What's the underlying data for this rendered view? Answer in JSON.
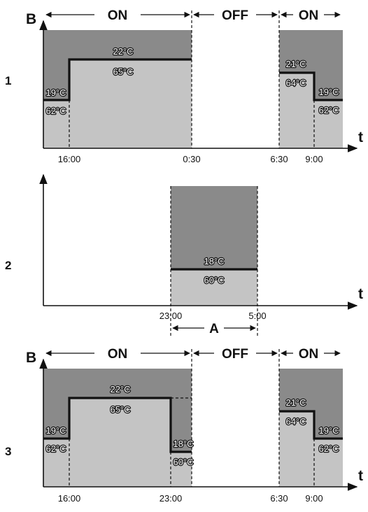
{
  "axis_labels": {
    "b": "B",
    "t": "t"
  },
  "panels": [
    {
      "number": "1",
      "states": {
        "on_1": "ON",
        "off": "OFF",
        "on_2": "ON"
      },
      "ticks": [
        "16:00",
        "0:30",
        "6:30",
        "9:00"
      ],
      "temps": [
        {
          "top": "19°C",
          "bottom": "62°C"
        },
        {
          "top": "22°C",
          "bottom": "65°C"
        },
        {
          "top": "21°C",
          "bottom": "64°C"
        },
        {
          "top": "19°C",
          "bottom": "62°C"
        }
      ]
    },
    {
      "number": "2",
      "ticks": [
        "23:00",
        "5:00"
      ],
      "temps": [
        {
          "top": "18°C",
          "bottom": "60°C"
        }
      ],
      "interval_label": "A"
    },
    {
      "number": "3",
      "states": {
        "on_1": "ON",
        "off": "OFF",
        "on_2": "ON"
      },
      "ticks": [
        "16:00",
        "23:00",
        "6:30",
        "9:00"
      ],
      "temps": [
        {
          "top": "19°C",
          "bottom": "62°C"
        },
        {
          "top": "22°C",
          "bottom": "65°C"
        },
        {
          "top": "18°C",
          "bottom": "60°C"
        },
        {
          "top": "21°C",
          "bottom": "64°C"
        },
        {
          "top": "19°C",
          "bottom": "62°C"
        }
      ]
    }
  ],
  "colors": {
    "upper_band": "#8a8a8a",
    "lower_band": "#c4c4c4",
    "line": "#111111"
  }
}
